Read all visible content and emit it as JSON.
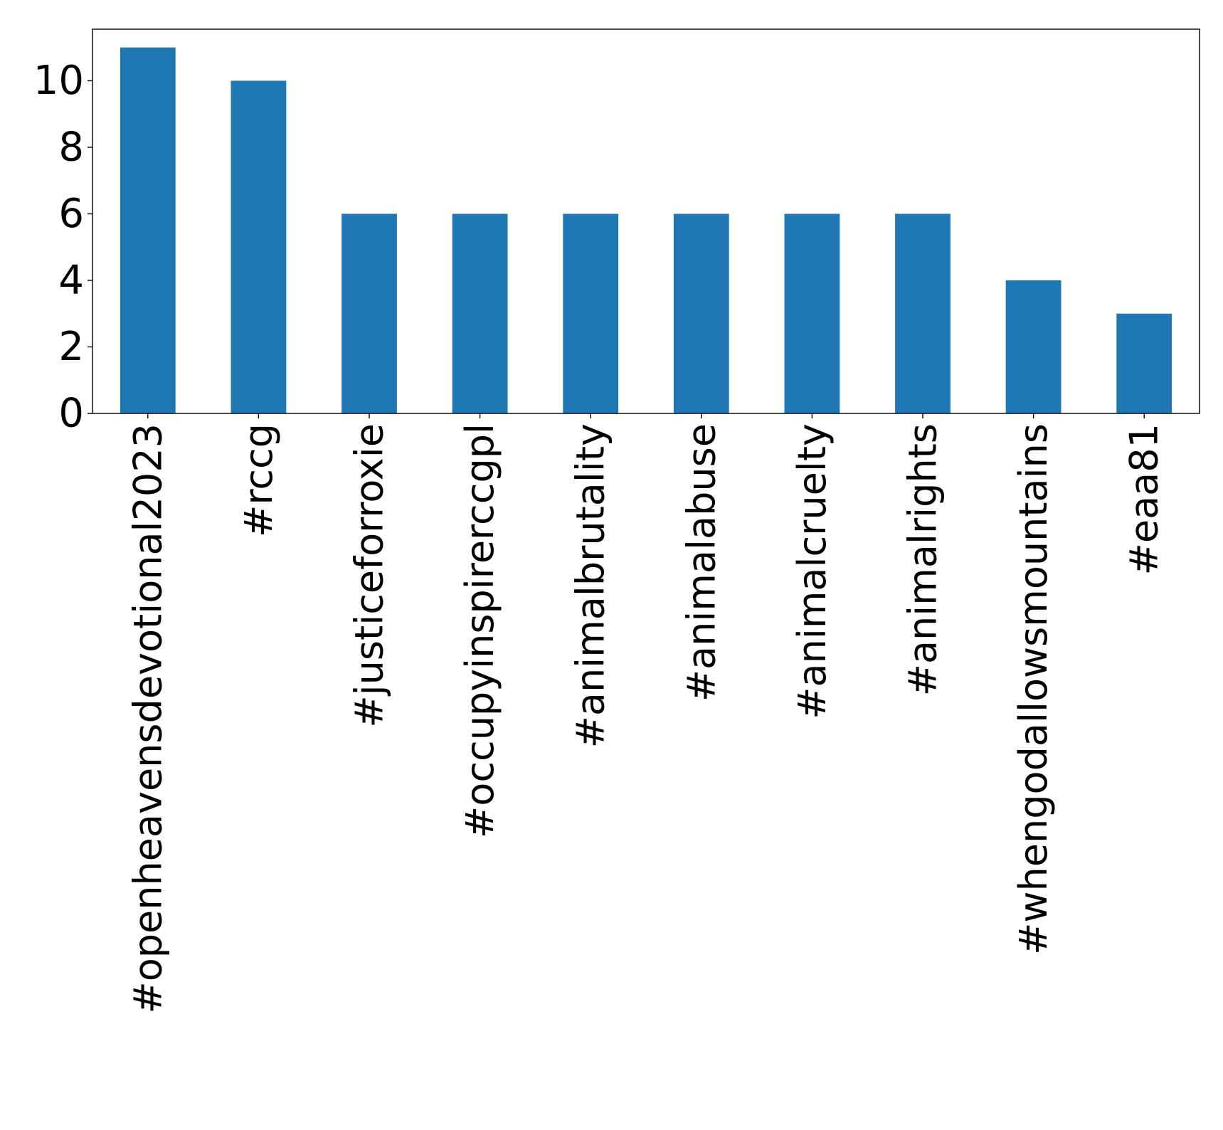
{
  "chart_data": {
    "type": "bar",
    "categories": [
      "#openheavensdevotional2023",
      "#rccg",
      "#justiceforroxie",
      "#occupyinspirerccgpl",
      "#animalbrutality",
      "#animalabuse",
      "#animalcruelty",
      "#animalrights",
      "#whengodallowsmountains",
      "#eaa81"
    ],
    "values": [
      11,
      10,
      6,
      6,
      6,
      6,
      6,
      6,
      4,
      3
    ],
    "title": "",
    "xlabel": "",
    "ylabel": "",
    "ylim": [
      0,
      11.55
    ],
    "yticks": [
      0,
      2,
      4,
      6,
      8,
      10
    ],
    "grid": false,
    "bar_color": "#1f77b4"
  }
}
